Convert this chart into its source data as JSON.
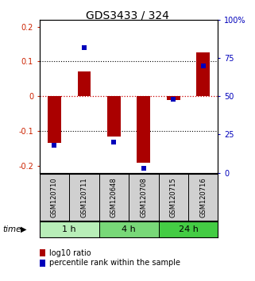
{
  "title": "GDS3433 / 324",
  "samples": [
    "GSM120710",
    "GSM120711",
    "GSM120648",
    "GSM120708",
    "GSM120715",
    "GSM120716"
  ],
  "log10_ratio": [
    -0.135,
    0.072,
    -0.115,
    -0.19,
    -0.01,
    0.125
  ],
  "percentile_rank": [
    18,
    82,
    20,
    3,
    48,
    70
  ],
  "groups": [
    {
      "label": "1 h",
      "indices": [
        0,
        1
      ],
      "color": "#b8eeb8"
    },
    {
      "label": "4 h",
      "indices": [
        2,
        3
      ],
      "color": "#78d878"
    },
    {
      "label": "24 h",
      "indices": [
        4,
        5
      ],
      "color": "#44cc44"
    }
  ],
  "ylim": [
    -0.22,
    0.22
  ],
  "yticks_left": [
    -0.2,
    -0.1,
    0.0,
    0.1,
    0.2
  ],
  "yticks_right_pct": [
    0,
    25,
    50,
    75,
    100
  ],
  "bar_color": "#aa0000",
  "dot_color": "#0000bb",
  "bg_color": "#ffffff",
  "plot_bg": "#ffffff",
  "zero_line_color": "#cc0000",
  "legend_bar_label": "log10 ratio",
  "legend_dot_label": "percentile rank within the sample",
  "time_label": "time",
  "title_fontsize": 10,
  "tick_fontsize": 7,
  "sample_fontsize": 6,
  "group_fontsize": 8,
  "legend_fontsize": 7
}
